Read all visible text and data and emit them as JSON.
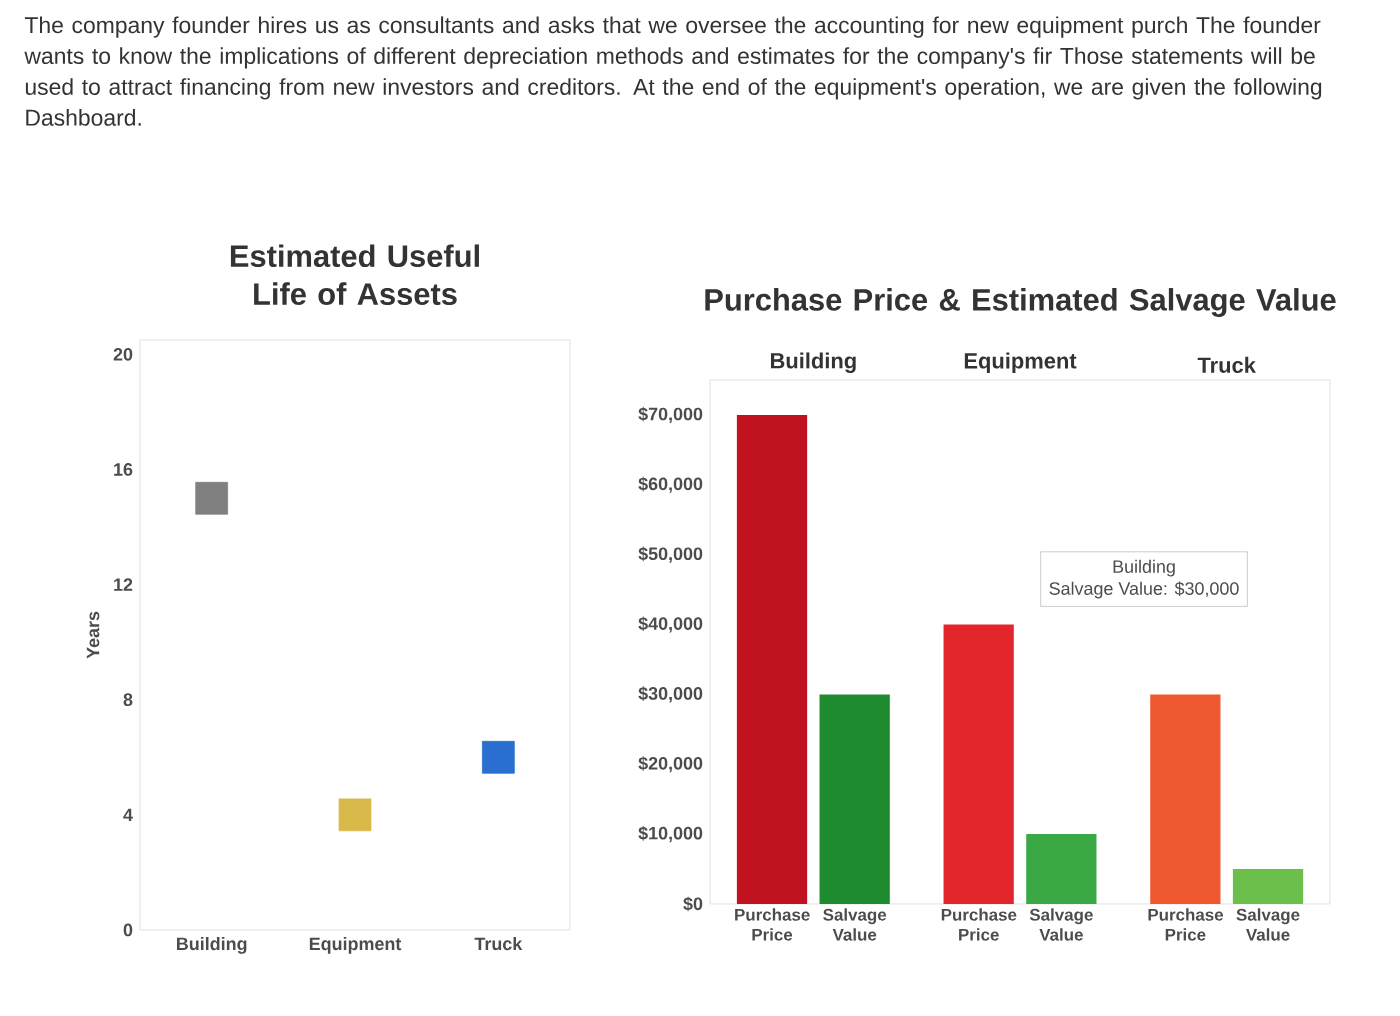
{
  "chart_data": [
    {
      "type": "other",
      "annotations": [
        "The company founder hires us as consultants and asks that we oversee the accounting for new equipment purch The founder wants to know the implications of different depreciation methods and estimates for the company's fir Those statements will be used to attract financing from new investors and creditors. At the end of the equipment's operation, we are given the following Dashboard."
      ]
    },
    {
      "type": "scatter",
      "title": "Estimated Useful Life of Assets",
      "ylabel": "Years",
      "categories": [
        "Building",
        "Equipment",
        "Truck"
      ],
      "values": [
        15,
        4,
        6
      ],
      "colors": [
        "#808080",
        "#d9b84a",
        "#2a6fd0"
      ],
      "marker": "square",
      "ylim": [
        0,
        20.5
      ],
      "yticks": [
        0,
        4,
        8,
        12,
        16,
        20
      ]
    },
    {
      "type": "bar",
      "title": "Purchase Price & Estimated Salvage Value",
      "categories": [
        "Building",
        "Equipment",
        "Truck"
      ],
      "series": [
        {
          "name": "Purchase Price",
          "colors": [
            "#c0121f",
            "#e3262b",
            "#f0582f"
          ],
          "values": [
            70000,
            40000,
            30000
          ]
        },
        {
          "name": "Salvage Value",
          "colors": [
            "#1e8c2e",
            "#3aa845",
            "#6cbf4a"
          ],
          "values": [
            30000,
            10000,
            5000
          ]
        }
      ],
      "ylim": [
        0,
        75000
      ],
      "yticks": [
        {
          "value": 0,
          "label": "$0"
        },
        {
          "value": 10000,
          "label": "$10,000"
        },
        {
          "value": 20000,
          "label": "$20,000"
        },
        {
          "value": 30000,
          "label": "$30,000"
        },
        {
          "value": 40000,
          "label": "$40,000"
        },
        {
          "value": 50000,
          "label": "$50,000"
        },
        {
          "value": 60000,
          "label": "$60,000"
        },
        {
          "value": 70000,
          "label": "$70,000"
        }
      ],
      "annotations": [
        "Building",
        "Salvage Value: $30,000"
      ]
    }
  ]
}
